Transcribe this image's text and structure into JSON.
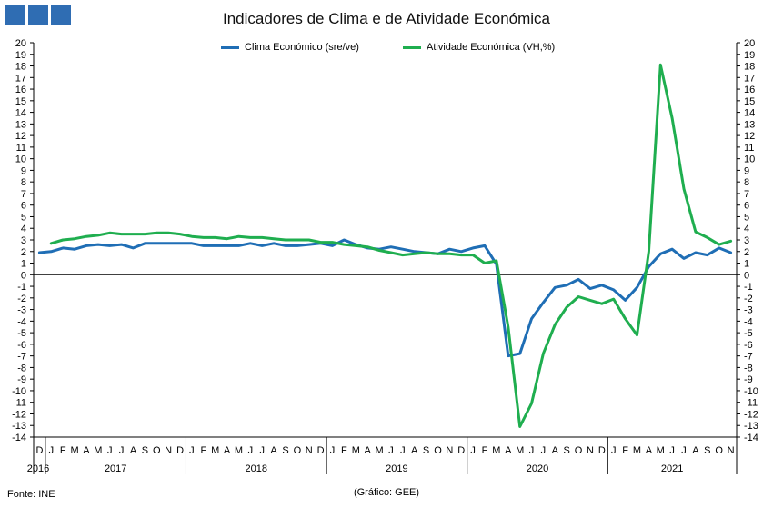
{
  "header": {
    "logo": {
      "icon": "ine-logo-squares",
      "color": "#2f6db3"
    }
  },
  "chart_data": {
    "type": "line",
    "title": "Indicadores de Clima e de Atividade Económica",
    "ylim": [
      -14,
      20
    ],
    "yticks": [
      -14,
      -13,
      -12,
      -11,
      -10,
      -9,
      -8,
      -7,
      -6,
      -5,
      -4,
      -3,
      -2,
      -1,
      0,
      1,
      2,
      3,
      4,
      5,
      6,
      7,
      8,
      9,
      10,
      11,
      12,
      13,
      14,
      15,
      16,
      17,
      18,
      19,
      20
    ],
    "grid": false,
    "legend_position": "top-center",
    "x": [
      "2016-12",
      "2017-01",
      "2017-02",
      "2017-03",
      "2017-04",
      "2017-05",
      "2017-06",
      "2017-07",
      "2017-08",
      "2017-09",
      "2017-10",
      "2017-11",
      "2017-12",
      "2018-01",
      "2018-02",
      "2018-03",
      "2018-04",
      "2018-05",
      "2018-06",
      "2018-07",
      "2018-08",
      "2018-09",
      "2018-10",
      "2018-11",
      "2018-12",
      "2019-01",
      "2019-02",
      "2019-03",
      "2019-04",
      "2019-05",
      "2019-06",
      "2019-07",
      "2019-08",
      "2019-09",
      "2019-10",
      "2019-11",
      "2019-12",
      "2020-01",
      "2020-02",
      "2020-03",
      "2020-04",
      "2020-05",
      "2020-06",
      "2020-07",
      "2020-08",
      "2020-09",
      "2020-10",
      "2020-11",
      "2020-12",
      "2021-01",
      "2021-02",
      "2021-03",
      "2021-04",
      "2021-05",
      "2021-06",
      "2021-07",
      "2021-08",
      "2021-09",
      "2021-10",
      "2021-11"
    ],
    "month_labels": [
      "D",
      "J",
      "F",
      "M",
      "A",
      "M",
      "J",
      "J",
      "A",
      "S",
      "O",
      "N",
      "D",
      "J",
      "F",
      "M",
      "A",
      "M",
      "J",
      "J",
      "A",
      "S",
      "O",
      "N",
      "D",
      "J",
      "F",
      "M",
      "A",
      "M",
      "J",
      "J",
      "A",
      "S",
      "O",
      "N",
      "D",
      "J",
      "F",
      "M",
      "A",
      "M",
      "J",
      "J",
      "A",
      "S",
      "O",
      "N",
      "D",
      "J",
      "F",
      "M",
      "A",
      "M",
      "J",
      "J",
      "A",
      "S",
      "O",
      "N"
    ],
    "year_labels": [
      {
        "label": "2016",
        "start": 0,
        "end": 0
      },
      {
        "label": "2017",
        "start": 1,
        "end": 12
      },
      {
        "label": "2018",
        "start": 13,
        "end": 24
      },
      {
        "label": "2019",
        "start": 25,
        "end": 36
      },
      {
        "label": "2020",
        "start": 37,
        "end": 48
      },
      {
        "label": "2021",
        "start": 49,
        "end": 59
      }
    ],
    "series": [
      {
        "name": "Clima Económico (sre/ve)",
        "color": "#1f6eb5",
        "values": [
          1.9,
          2.0,
          2.3,
          2.2,
          2.5,
          2.6,
          2.5,
          2.6,
          2.3,
          2.7,
          2.7,
          2.7,
          2.7,
          2.7,
          2.5,
          2.5,
          2.5,
          2.5,
          2.7,
          2.5,
          2.7,
          2.5,
          2.5,
          2.6,
          2.7,
          2.5,
          3.0,
          2.6,
          2.3,
          2.2,
          2.4,
          2.2,
          2.0,
          1.9,
          1.8,
          2.2,
          2.0,
          2.3,
          2.5,
          0.9,
          -7.0,
          -6.8,
          -3.8,
          -2.4,
          -1.1,
          -0.9,
          -0.4,
          -1.2,
          -0.9,
          -1.3,
          -2.2,
          -1.1,
          0.7,
          1.8,
          2.2,
          1.4,
          1.9,
          1.7,
          2.3,
          1.9
        ]
      },
      {
        "name": "Atividade Económica (VH,%)",
        "color": "#1fae4f",
        "values": [
          null,
          2.7,
          3.0,
          3.1,
          3.3,
          3.4,
          3.6,
          3.5,
          3.5,
          3.5,
          3.6,
          3.6,
          3.5,
          3.3,
          3.2,
          3.2,
          3.1,
          3.3,
          3.2,
          3.2,
          3.1,
          3.0,
          3.0,
          3.0,
          2.8,
          2.8,
          2.6,
          2.5,
          2.4,
          2.1,
          1.9,
          1.7,
          1.8,
          1.9,
          1.8,
          1.8,
          1.7,
          1.7,
          1.0,
          1.2,
          -4.5,
          -13.1,
          -11.1,
          -6.8,
          -4.3,
          -2.8,
          -1.9,
          -2.2,
          -2.5,
          -2.1,
          -3.8,
          -5.2,
          2.0,
          18.1,
          13.5,
          7.4,
          3.7,
          3.2,
          2.6,
          2.9
        ]
      }
    ]
  },
  "source_text": "Fonte: INE",
  "credit_text": "(Gráfico: GEE)"
}
